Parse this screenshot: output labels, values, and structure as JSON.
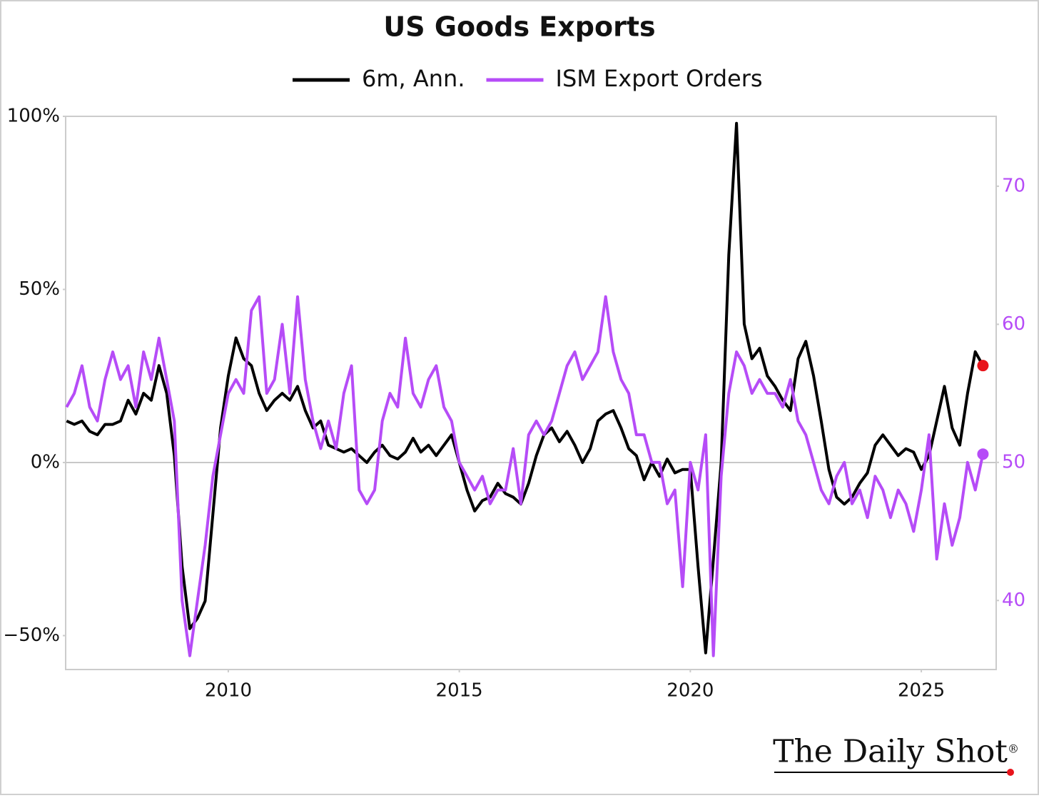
{
  "chart_data": {
    "type": "line",
    "title": "US Goods Exports",
    "legend": "top",
    "zeroline": true,
    "x": [
      2006.5,
      2006.667,
      2006.833,
      2007,
      2007.167,
      2007.333,
      2007.5,
      2007.667,
      2007.833,
      2008,
      2008.167,
      2008.333,
      2008.5,
      2008.667,
      2008.833,
      2009,
      2009.167,
      2009.333,
      2009.5,
      2009.667,
      2009.833,
      2010,
      2010.167,
      2010.333,
      2010.5,
      2010.667,
      2010.833,
      2011,
      2011.167,
      2011.333,
      2011.5,
      2011.667,
      2011.833,
      2012,
      2012.167,
      2012.333,
      2012.5,
      2012.667,
      2012.833,
      2013,
      2013.167,
      2013.333,
      2013.5,
      2013.667,
      2013.833,
      2014,
      2014.167,
      2014.333,
      2014.5,
      2014.667,
      2014.833,
      2015,
      2015.167,
      2015.333,
      2015.5,
      2015.667,
      2015.833,
      2016,
      2016.167,
      2016.333,
      2016.5,
      2016.667,
      2016.833,
      2017,
      2017.167,
      2017.333,
      2017.5,
      2017.667,
      2017.833,
      2018,
      2018.167,
      2018.333,
      2018.5,
      2018.667,
      2018.833,
      2019,
      2019.167,
      2019.333,
      2019.5,
      2019.667,
      2019.833,
      2020,
      2020.167,
      2020.333,
      2020.5,
      2020.667,
      2020.833,
      2021,
      2021.167,
      2021.333,
      2021.5,
      2021.667,
      2021.833,
      2022,
      2022.167,
      2022.333,
      2022.5,
      2022.667,
      2022.833,
      2023,
      2023.167,
      2023.333,
      2023.5,
      2023.667,
      2023.833,
      2024,
      2024.167,
      2024.333,
      2024.5,
      2024.667,
      2024.833,
      2025,
      2025.167,
      2025.333,
      2025.5,
      2025.667,
      2025.833,
      2026,
      2026.167,
      2026.333
    ],
    "xlim": [
      2006.48,
      2026.62
    ],
    "xticks": [
      2010,
      2015,
      2020,
      2025
    ],
    "ylim": [
      -59.8,
      100
    ],
    "yticks": [
      {
        "value": 100,
        "label": "100%"
      },
      {
        "value": 50,
        "label": "50%"
      },
      {
        "value": 0,
        "label": "0%"
      },
      {
        "value": -50,
        "label": "−50%"
      }
    ],
    "y2lim": [
      35,
      75.06
    ],
    "y2ticks": [
      40,
      50,
      60,
      70
    ],
    "series": [
      {
        "name": "6m, Ann.",
        "color": "#000000",
        "end_marker_color": "#e8141b",
        "values": [
          12,
          11,
          12,
          9,
          8,
          11,
          11,
          12,
          18,
          14,
          20,
          18,
          28,
          20,
          2,
          -30,
          -48,
          -45,
          -40,
          -15,
          10,
          25,
          36,
          30,
          28,
          20,
          15,
          18,
          20,
          18,
          22,
          15,
          10,
          12,
          5,
          4,
          3,
          4,
          2,
          0,
          3,
          5,
          2,
          1,
          3,
          7,
          3,
          5,
          2,
          5,
          8,
          0,
          -8,
          -14,
          -11,
          -10,
          -6,
          -9,
          -10,
          -12,
          -6,
          2,
          8,
          10,
          6,
          9,
          5,
          0,
          4,
          12,
          14,
          15,
          10,
          4,
          2,
          -5,
          0,
          -4,
          1,
          -3,
          -2,
          -2,
          -30,
          -55,
          -28,
          0,
          60,
          98,
          40,
          30,
          33,
          25,
          22,
          18,
          15,
          30,
          35,
          25,
          12,
          -2,
          -10,
          -12,
          -10,
          -6,
          -3,
          5,
          8,
          5,
          2,
          4,
          3,
          -2,
          2,
          12,
          22,
          10,
          5,
          20,
          32,
          28
        ]
      },
      {
        "name": "ISM Export Orders",
        "color": "#b64cf7",
        "end_marker_color": "#b64cf7",
        "axis": "y2",
        "values": [
          54,
          55,
          57,
          54,
          53,
          56,
          58,
          56,
          57,
          54,
          58,
          56,
          59,
          56,
          53,
          40,
          36,
          40,
          44,
          49,
          52,
          55,
          56,
          55,
          61,
          62,
          55,
          56,
          60,
          55,
          62,
          56,
          53,
          51,
          53,
          51,
          55,
          57,
          48,
          47,
          48,
          53,
          55,
          54,
          59,
          55,
          54,
          56,
          57,
          54,
          53,
          50,
          49,
          48,
          49,
          47,
          48,
          48,
          51,
          47,
          52,
          53,
          52,
          53,
          55,
          57,
          58,
          56,
          57,
          58,
          62,
          58,
          56,
          55,
          52,
          52,
          50,
          50,
          47,
          48,
          41,
          50,
          48,
          52,
          36,
          49,
          55,
          58,
          57,
          55,
          56,
          55,
          55,
          54,
          56,
          53,
          52,
          50,
          48,
          47,
          49,
          50,
          47,
          48,
          46,
          49,
          48,
          46,
          48,
          47,
          45,
          48,
          52,
          43,
          47,
          44,
          46,
          50,
          48,
          50.6
        ]
      }
    ]
  },
  "brand": {
    "name": "The Daily Shot",
    "mark": "®"
  }
}
